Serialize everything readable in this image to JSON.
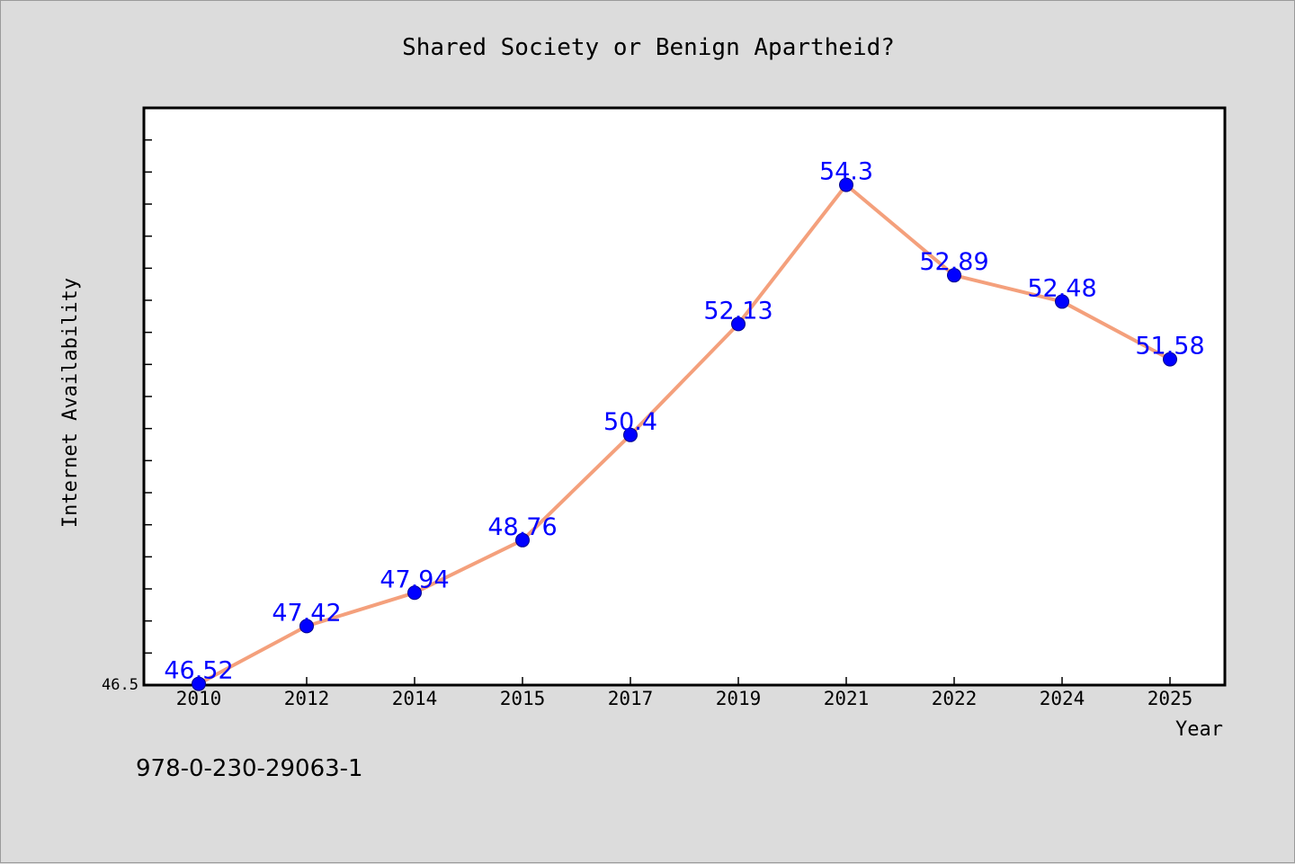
{
  "chart_data": {
    "type": "line",
    "title": "Shared Society or Benign Apartheid?",
    "xlabel": "Year",
    "ylabel": "Internet Availability",
    "categories": [
      "2010",
      "2012",
      "2014",
      "2015",
      "2017",
      "2019",
      "2021",
      "2022",
      "2024",
      "2025"
    ],
    "series": [
      {
        "values": [
          46.52,
          47.42,
          47.94,
          48.76,
          50.4,
          52.13,
          54.3,
          52.89,
          52.48,
          51.58
        ],
        "labels": [
          "46.52",
          "47.42",
          "47.94",
          "48.76",
          "50.4",
          "52.13",
          "54.3",
          "52.89",
          "52.48",
          "51.58"
        ]
      }
    ],
    "ylim": [
      46.5,
      55.5
    ],
    "y_tick_label": "46.5",
    "grid": false,
    "line_color": "#f4a07c",
    "marker_color": "#0000ff",
    "label_color": "#0000ff"
  },
  "footer_text": "978-0-230-29063-1"
}
